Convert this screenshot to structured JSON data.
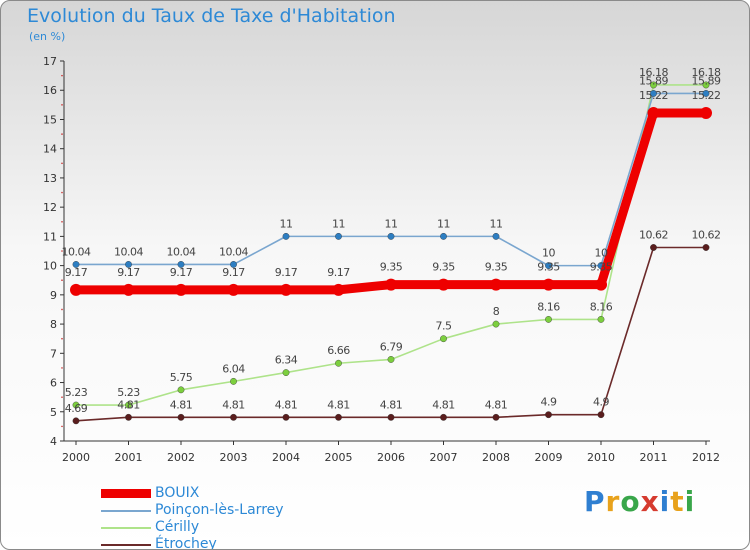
{
  "header": {
    "title": "Evolution du Taux de Taxe d'Habitation",
    "unit": "(en %)"
  },
  "brand": {
    "text": "Proxiti",
    "colors": [
      "#2f7fd1",
      "#e8a21c",
      "#39a64a",
      "#d63b2f"
    ]
  },
  "chart_data": {
    "type": "line",
    "title": "Evolution du Taux de Taxe d'Habitation",
    "ylabel": "(en %)",
    "xlabel": "",
    "x": [
      "2000",
      "2001",
      "2002",
      "2003",
      "2004",
      "2005",
      "2006",
      "2007",
      "2008",
      "2009",
      "2010",
      "2011",
      "2012"
    ],
    "ylim": [
      4,
      17
    ],
    "yticks": [
      "4",
      "5",
      "6",
      "7",
      "8",
      "9",
      "10",
      "11",
      "12",
      "13",
      "14",
      "15",
      "16",
      "17"
    ],
    "grid": false,
    "legend_position": "bottom-left",
    "series": [
      {
        "name": "BOUIX",
        "color": "#ee0000",
        "thick": true,
        "values": [
          9.17,
          9.17,
          9.17,
          9.17,
          9.17,
          9.17,
          9.35,
          9.35,
          9.35,
          9.35,
          9.35,
          15.22,
          15.22
        ],
        "labels": [
          "9.17",
          "9.17",
          "9.17",
          "9.17",
          "9.17",
          "9.17",
          "9.35",
          "9.35",
          "9.35",
          "9.35",
          "9.35",
          "15.22",
          "15.22"
        ]
      },
      {
        "name": "Poinçon-lès-Larrey",
        "color": "#7aa6cf",
        "marker": "#2d7ec2",
        "values": [
          10.04,
          10.04,
          10.04,
          10.04,
          11,
          11,
          11,
          11,
          11,
          10,
          10,
          15.89,
          15.89
        ],
        "labels": [
          "10.04",
          "10.04",
          "10.04",
          "10.04",
          "11",
          "11",
          "11",
          "11",
          "11",
          "10",
          "10",
          "15.89",
          "15.89"
        ]
      },
      {
        "name": "Cérilly",
        "color": "#aee38a",
        "marker": "#7ccf3e",
        "values": [
          5.23,
          5.23,
          5.75,
          6.04,
          6.34,
          6.66,
          6.79,
          7.5,
          8,
          8.16,
          8.16,
          16.18,
          16.18
        ],
        "labels": [
          "5.23",
          "5.23",
          "5.75",
          "6.04",
          "6.34",
          "6.66",
          "6.79",
          "7.5",
          "8",
          "8.16",
          "8.16",
          "16.18",
          "16.18"
        ]
      },
      {
        "name": "Étrochey",
        "color": "#6b2a2a",
        "marker": "#5a1d1d",
        "values": [
          4.69,
          4.81,
          4.81,
          4.81,
          4.81,
          4.81,
          4.81,
          4.81,
          4.81,
          4.9,
          4.9,
          10.62,
          10.62
        ],
        "labels": [
          "4.69",
          "4.81",
          "4.81",
          "4.81",
          "4.81",
          "4.81",
          "4.81",
          "4.81",
          "4.81",
          "4.9",
          "4.9",
          "10.62",
          "10.62"
        ]
      }
    ]
  }
}
